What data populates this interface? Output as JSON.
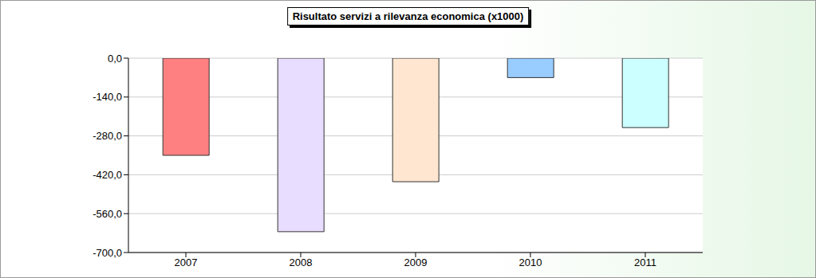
{
  "chart_data": {
    "type": "bar",
    "title": "Risultato servizi a rilevanza economica (x1000)",
    "categories": [
      "2007",
      "2008",
      "2009",
      "2010",
      "2011"
    ],
    "values": [
      -350,
      -625,
      -445,
      -70,
      -250
    ],
    "colors": [
      "#ff8080",
      "#e8dcff",
      "#ffe6d0",
      "#99ccff",
      "#ccffff"
    ],
    "ylim": [
      -700,
      0
    ],
    "yticks": [
      {
        "value": -700,
        "label": "-700,0"
      },
      {
        "value": -560,
        "label": "-560,0"
      },
      {
        "value": -420,
        "label": "-420,0"
      },
      {
        "value": -280,
        "label": "-280,0"
      },
      {
        "value": -140,
        "label": "-140,0"
      },
      {
        "value": 0,
        "label": "0,0"
      }
    ],
    "grid": true
  }
}
